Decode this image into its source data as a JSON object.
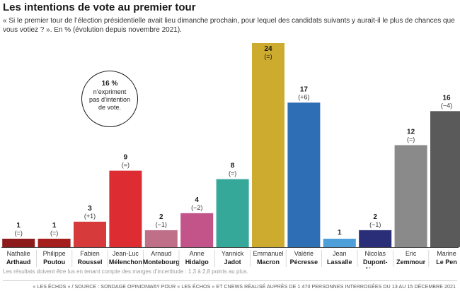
{
  "header": {
    "title": "Les intentions de vote au premier tour",
    "subtitle": "« Si le premier tour de l’élection présidentielle avait lieu dimanche prochain, pour lequel des candidats suivants y aurait-il le plus de chances que vous votiez ? ». En % (évolution depuis novembre 2021)."
  },
  "callout": {
    "value": "16 %",
    "text": "n’expriment pas d’intention de vote."
  },
  "footer": {
    "note": "Les résultats doivent être lus en tenant compte des marges d’incertitude : 1,3 à 2,8 points au plus.",
    "source": "« LES ÉCHOS » / SOURCE : SONDAGE OPINIONWAY POUR « LES ÉCHOS » ET CNEWS RÉALISÉ AUPRÈS DE 1 470 PERSONNES INTERROGÉES DU 13 AU 15 DÉCEMBRE 2021"
  },
  "chart_data": {
    "type": "bar",
    "categories": [
      {
        "first": "Nathalie",
        "last": "Arthaud"
      },
      {
        "first": "Philippe",
        "last": "Poutou"
      },
      {
        "first": "Fabien",
        "last": "Roussel"
      },
      {
        "first": "Jean-Luc",
        "last": "Mélenchon"
      },
      {
        "first": "Arnaud",
        "last": "Montebourg"
      },
      {
        "first": "Anne",
        "last": "Hidalgo"
      },
      {
        "first": "Yannick",
        "last": "Jadot"
      },
      {
        "first": "Emmanuel",
        "last": "Macron"
      },
      {
        "first": "Valérie",
        "last": "Pécresse"
      },
      {
        "first": "Jean",
        "last": "Lassalle"
      },
      {
        "first": "Nicolas",
        "last": "Dupont-\nAignan"
      },
      {
        "first": "Eric",
        "last": "Zemmour"
      },
      {
        "first": "Marine",
        "last": "Le Pen"
      }
    ],
    "values": [
      1,
      1,
      3,
      9,
      2,
      4,
      8,
      24,
      17,
      1,
      2,
      12,
      16
    ],
    "changes": [
      "(=)",
      "(=)",
      "(+1)",
      "(=)",
      "(−1)",
      "(−2)",
      "(=)",
      "(=)",
      "(+6)",
      "",
      "(−1)",
      "(=)",
      "(−4)"
    ],
    "colors": [
      "#8e1b1b",
      "#a51e1e",
      "#d63a3a",
      "#de2d32",
      "#c06f88",
      "#c2548a",
      "#35a89a",
      "#ccab2e",
      "#2e6eb5",
      "#4c9fd9",
      "#2a2d78",
      "#8a8a8a",
      "#5a5a5a"
    ],
    "ylim": [
      0,
      24
    ]
  }
}
